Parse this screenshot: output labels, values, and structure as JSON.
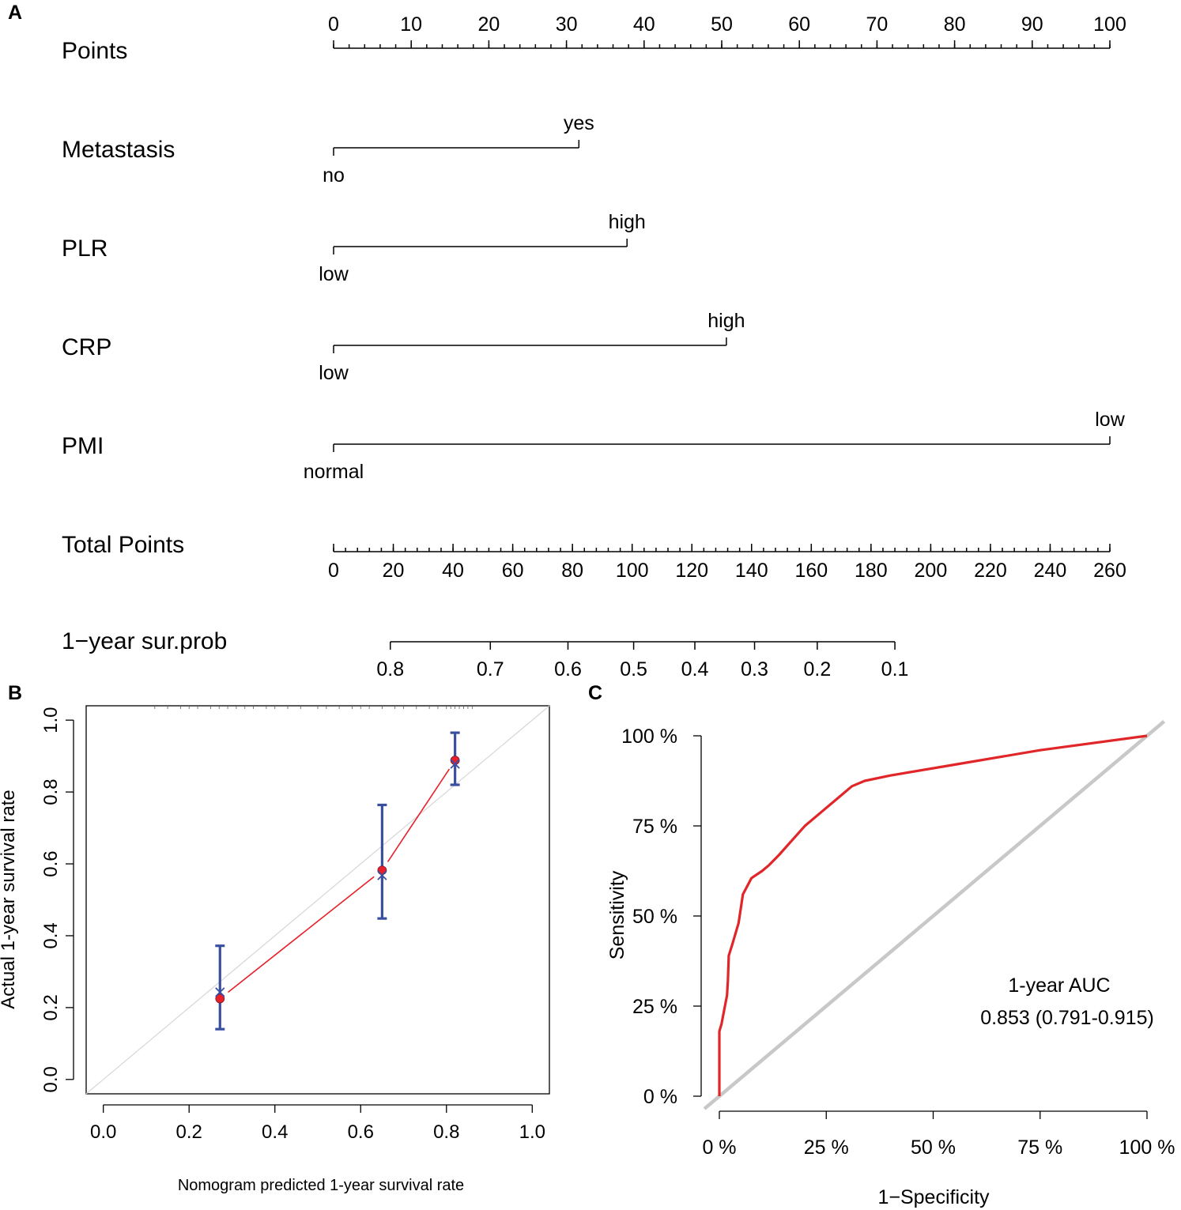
{
  "panels": {
    "a": "A",
    "b": "B",
    "c": "C"
  },
  "chart_data": [
    {
      "type": "nomogram",
      "panel": "A",
      "points_axis": {
        "label": "Points",
        "range": [
          0,
          100
        ],
        "ticks": [
          0,
          10,
          20,
          30,
          40,
          50,
          60,
          70,
          80,
          90,
          100
        ],
        "minor_step": 2
      },
      "variables": [
        {
          "name": "Metastasis",
          "low_label": "no",
          "high_label": "yes",
          "low_points": 0,
          "high_points": 31.6
        },
        {
          "name": "PLR",
          "low_label": "low",
          "high_label": "high",
          "low_points": 0,
          "high_points": 37.8
        },
        {
          "name": "CRP",
          "low_label": "low",
          "high_label": "high",
          "low_points": 0,
          "high_points": 50.6
        },
        {
          "name": "PMI",
          "low_label": "normal",
          "high_label": "low",
          "low_points": 0,
          "high_points": 100
        }
      ],
      "total_points_axis": {
        "label": "Total Points",
        "range": [
          0,
          260
        ],
        "ticks": [
          0,
          20,
          40,
          60,
          80,
          100,
          120,
          140,
          160,
          180,
          200,
          220,
          240,
          260
        ],
        "minor_step": 4
      },
      "probability_axis": {
        "label": "1−year sur.prob",
        "ticks": [
          {
            "label": "0.8",
            "total_points": 19
          },
          {
            "label": "0.7",
            "total_points": 52.5
          },
          {
            "label": "0.6",
            "total_points": 78.5
          },
          {
            "label": "0.5",
            "total_points": 100.5
          },
          {
            "label": "0.4",
            "total_points": 121
          },
          {
            "label": "0.3",
            "total_points": 141
          },
          {
            "label": "0.2",
            "total_points": 162
          },
          {
            "label": "0.1",
            "total_points": 188
          }
        ]
      }
    },
    {
      "type": "line",
      "panel": "B",
      "title": "",
      "xlabel": "Nomogram predicted 1-year survival rate",
      "ylabel": "Actual 1-year survival rate",
      "xlim": [
        -0.04,
        1.04
      ],
      "ylim": [
        -0.04,
        1.04
      ],
      "xticks": [
        "0.0",
        "0.2",
        "0.4",
        "0.6",
        "0.8",
        "1.0"
      ],
      "yticks": [
        "0.0",
        "0.2",
        "0.4",
        "0.6",
        "0.8",
        "1.0"
      ],
      "series": [
        {
          "name": "Ideal",
          "color": "#d9d9d9",
          "x": [
            -0.04,
            1.04
          ],
          "y": [
            -0.04,
            1.04
          ]
        },
        {
          "name": "Observed",
          "color": "#e8202a",
          "x": [
            0.272,
            0.65,
            0.82
          ],
          "y": [
            0.225,
            0.582,
            0.888
          ]
        },
        {
          "name": "Bias-corrected",
          "color": "#3a4fa0",
          "x": [
            0.272,
            0.65,
            0.82
          ],
          "y": [
            0.243,
            0.568,
            0.878
          ]
        }
      ],
      "error_bars": [
        {
          "x": 0.272,
          "lower": 0.14,
          "upper": 0.372
        },
        {
          "x": 0.65,
          "lower": 0.448,
          "upper": 0.764
        },
        {
          "x": 0.82,
          "lower": 0.82,
          "upper": 0.965
        }
      ],
      "rug_x": [
        0.12,
        0.15,
        0.18,
        0.2,
        0.22,
        0.25,
        0.27,
        0.29,
        0.31,
        0.33,
        0.35,
        0.38,
        0.4,
        0.43,
        0.46,
        0.5,
        0.52,
        0.55,
        0.58,
        0.6,
        0.62,
        0.65,
        0.68,
        0.7,
        0.73,
        0.76,
        0.78,
        0.8,
        0.81,
        0.82,
        0.83,
        0.84,
        0.85,
        0.86
      ]
    },
    {
      "type": "line",
      "panel": "C",
      "title": "",
      "xlabel": "1−Specificity",
      "ylabel": "Sensitivity",
      "xlim": [
        -0.035,
        1.04
      ],
      "ylim": [
        -0.035,
        1.04
      ],
      "xticks": [
        "0 %",
        "25 %",
        "50 %",
        "75 %",
        "100 %"
      ],
      "yticks": [
        "0 %",
        "25 %",
        "50 %",
        "75 %",
        "100 %"
      ],
      "annotation": {
        "line1": "1-year AUC",
        "line2": "0.853 (0.791-0.915)"
      },
      "series": [
        {
          "name": "Reference",
          "color": "#c8c8c8",
          "x": [
            -0.035,
            1.04
          ],
          "y": [
            -0.035,
            1.04
          ]
        },
        {
          "name": "ROC",
          "color": "#e1262a",
          "x": [
            0.0,
            0.0,
            0.005,
            0.018,
            0.02,
            0.022,
            0.03,
            0.045,
            0.055,
            0.075,
            0.1,
            0.115,
            0.14,
            0.17,
            0.2,
            0.24,
            0.28,
            0.31,
            0.34,
            0.4,
            0.55,
            0.75,
            1.0
          ],
          "y": [
            0.0,
            0.18,
            0.2,
            0.28,
            0.32,
            0.39,
            0.42,
            0.48,
            0.56,
            0.605,
            0.625,
            0.64,
            0.67,
            0.71,
            0.75,
            0.79,
            0.83,
            0.86,
            0.875,
            0.89,
            0.92,
            0.96,
            1.0
          ]
        }
      ]
    }
  ]
}
